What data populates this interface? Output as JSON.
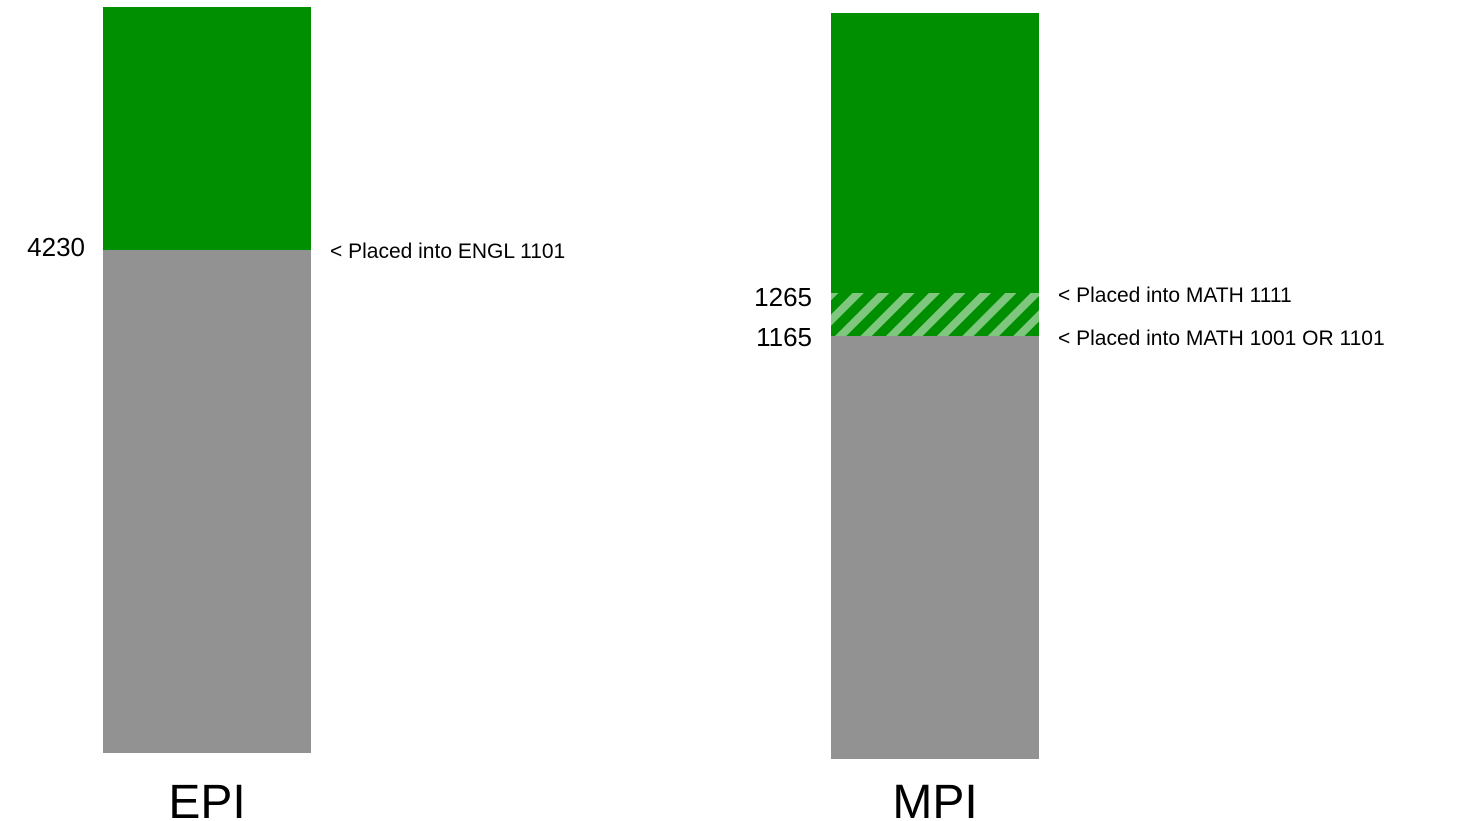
{
  "colors": {
    "passed_green": "#008f00",
    "below_gray": "#929292",
    "hatch_light": "#7fc77f",
    "text": "#000000",
    "background": "#ffffff"
  },
  "bars": [
    {
      "label": "EPI",
      "thresholds": [
        {
          "score": "4230",
          "note": "< Placed into ENGL 1101"
        }
      ]
    },
    {
      "label": "MPI",
      "thresholds": [
        {
          "score": "1265",
          "note": "< Placed into MATH 1111"
        },
        {
          "score": "1165",
          "note": "< Placed into MATH 1001 OR 1101"
        }
      ]
    }
  ]
}
